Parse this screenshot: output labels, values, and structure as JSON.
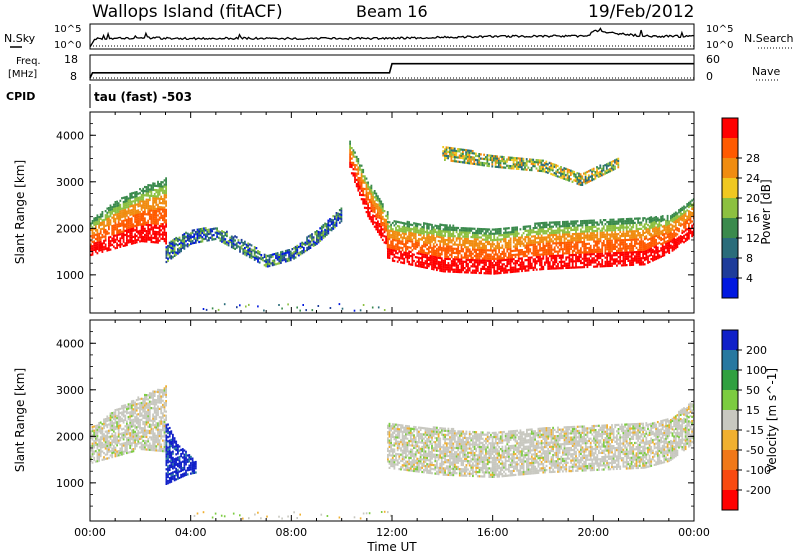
{
  "header": {
    "title_left": "Wallops Island (fitACF)",
    "title_center": "Beam 16",
    "title_right": "19/Feb/2012"
  },
  "top_panels": {
    "nsky_label": "N.Sky",
    "nsearch_label": "N.Search",
    "noise_ticks_left": [
      "10^5",
      "10^0"
    ],
    "noise_ticks_right": [
      "10^5",
      "10^0"
    ],
    "freq_label": "Freq.",
    "freq_unit": "[MHz]",
    "freq_ticks": [
      "18",
      "8"
    ],
    "nave_label": "Nave",
    "nave_ticks": [
      "60",
      "0"
    ],
    "cpid_label": "CPID",
    "cpid_text": "tau (fast) -503"
  },
  "colors": {
    "power_scale": [
      "#0018e0",
      "#1e3c9a",
      "#2a6c7a",
      "#3a8a4c",
      "#8cc040",
      "#f0c820",
      "#f08c10",
      "#ff5a00",
      "#ff0000"
    ],
    "velocity_scale": [
      "#1020c8",
      "#2878a0",
      "#30a040",
      "#7ccc40",
      "#c8c8c0",
      "#f0b030",
      "#f07818",
      "#f84a10",
      "#ff0000"
    ]
  },
  "chart_data": [
    {
      "type": "line",
      "panel": "noise",
      "x_range": [
        "00:00",
        "24:00"
      ],
      "series": [
        {
          "name": "N.Sky",
          "x_hours": [
            0,
            0.2,
            2,
            4,
            6,
            8,
            10,
            12,
            14,
            16,
            18,
            19.8,
            20,
            22,
            24
          ],
          "y_log10": [
            0,
            2.0,
            2.2,
            2.0,
            2.1,
            2.0,
            2.0,
            2.1,
            2.3,
            2.5,
            2.6,
            2.6,
            3.8,
            2.6,
            2.5
          ]
        }
      ]
    },
    {
      "type": "line",
      "panel": "frequency_nave",
      "x_range": [
        "00:00",
        "24:00"
      ],
      "series": [
        {
          "name": "Freq.",
          "x_hours": [
            0,
            0.1,
            11.9,
            12.0,
            24
          ],
          "y": [
            8,
            10.5,
            10.5,
            14.8,
            14.8
          ],
          "ylim": [
            8,
            18
          ]
        },
        {
          "name": "Nave",
          "x_hours": [
            0,
            24
          ],
          "y": [
            0,
            0
          ],
          "ylim": [
            0,
            60
          ]
        }
      ]
    },
    {
      "type": "heatmap",
      "panel": "power",
      "xlabel": "",
      "ylabel": "Slant Range [km]",
      "x_ticks": [
        "00:00",
        "04:00",
        "08:00",
        "12:00",
        "16:00",
        "20:00",
        "00:00"
      ],
      "y_ticks": [
        1000,
        2000,
        3000,
        4000
      ],
      "ylim": [
        180,
        4500
      ],
      "colorbar_label": "Power [dB]",
      "colorbar_ticks": [
        4,
        8,
        12,
        16,
        20,
        24,
        28
      ],
      "bands": [
        {
          "x_hours": [
            0,
            1,
            2,
            3
          ],
          "range_low": [
            1450,
            1600,
            1750,
            1700
          ],
          "range_high": [
            2200,
            2600,
            2900,
            3100
          ],
          "level": "high"
        },
        {
          "x_hours": [
            3,
            4,
            5,
            6,
            7,
            8,
            9,
            10
          ],
          "range_low": [
            1300,
            1700,
            1800,
            1500,
            1200,
            1350,
            1700,
            2200
          ],
          "range_high": [
            1700,
            2000,
            2050,
            1800,
            1450,
            1600,
            2000,
            2500
          ],
          "level": "low"
        },
        {
          "x_hours": [
            10.3,
            11,
            11.8
          ],
          "range_low": [
            3300,
            2300,
            1600
          ],
          "range_high": [
            3900,
            3100,
            2400
          ],
          "level": "high"
        },
        {
          "x_hours": [
            11.8,
            14,
            16,
            18,
            20,
            22,
            23,
            24
          ],
          "range_low": [
            1350,
            1100,
            1050,
            1150,
            1200,
            1250,
            1500,
            1900
          ],
          "range_high": [
            2200,
            2100,
            2000,
            2150,
            2200,
            2250,
            2300,
            2700
          ],
          "level": "high"
        },
        {
          "x_hours": [
            14,
            16,
            18,
            19.5,
            21
          ],
          "range_low": [
            3500,
            3350,
            3250,
            2950,
            3350
          ],
          "range_high": [
            3800,
            3600,
            3500,
            3200,
            3550
          ],
          "level": "mid"
        }
      ]
    },
    {
      "type": "heatmap",
      "panel": "velocity",
      "xlabel": "Time UT",
      "ylabel": "Slant Range [km]",
      "x_ticks": [
        "00:00",
        "04:00",
        "08:00",
        "12:00",
        "16:00",
        "20:00",
        "00:00"
      ],
      "y_ticks": [
        1000,
        2000,
        3000,
        4000
      ],
      "ylim": [
        180,
        4500
      ],
      "colorbar_label": "Velocity [m s^-1]",
      "colorbar_ticks": [
        200,
        100,
        50,
        15,
        -15,
        -50,
        -100,
        -200
      ],
      "bands": [
        {
          "x_hours": [
            0,
            1,
            2,
            3
          ],
          "range_low": [
            1450,
            1600,
            1750,
            1700
          ],
          "range_high": [
            2200,
            2600,
            2900,
            3100
          ],
          "level": "near-zero"
        },
        {
          "x_hours": [
            3.0,
            3.4,
            3.8,
            4.2
          ],
          "range_low": [
            1000,
            1100,
            1200,
            1250
          ],
          "range_high": [
            2400,
            1900,
            1700,
            1500
          ],
          "level": "positive"
        },
        {
          "x_hours": [
            11.8,
            14,
            16,
            18,
            20,
            22,
            23,
            24
          ],
          "range_low": [
            1350,
            1200,
            1150,
            1250,
            1300,
            1350,
            1500,
            1900
          ],
          "range_high": [
            2300,
            2200,
            2100,
            2200,
            2250,
            2300,
            2400,
            2800
          ],
          "level": "near-zero"
        }
      ]
    }
  ]
}
